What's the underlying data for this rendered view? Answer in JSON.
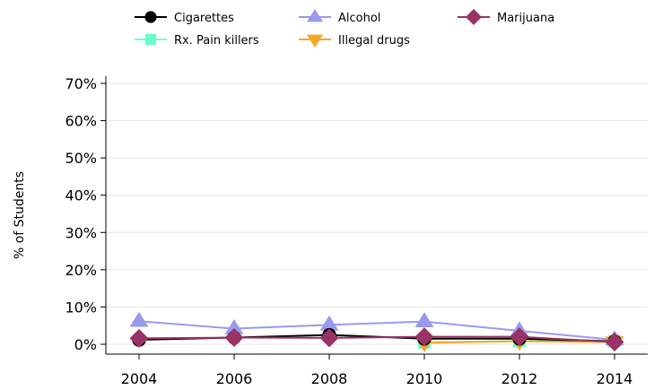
{
  "chart_data": {
    "type": "line",
    "title": "",
    "xlabel": "",
    "ylabel": "% of Students",
    "x": [
      "2004",
      "2006",
      "2008",
      "2010",
      "2012",
      "2014"
    ],
    "xlim": [
      2004,
      2014
    ],
    "ylim": [
      -2,
      75
    ],
    "yticks": [
      0,
      10,
      20,
      30,
      40,
      50,
      60,
      70
    ],
    "ytick_labels": [
      "0%",
      "10%",
      "20%",
      "30%",
      "40%",
      "50%",
      "60%",
      "70%"
    ],
    "grid": "horizontal",
    "legend_placement": "top",
    "series": [
      {
        "name": "Cigarettes",
        "color": "#000000",
        "marker": "circle",
        "values": [
          1.2,
          1.8,
          2.5,
          1.5,
          1.5,
          0.8
        ]
      },
      {
        "name": "Alcohol",
        "color": "#9999ee",
        "marker": "triangle-up",
        "values": [
          6.2,
          4.2,
          5.2,
          6.1,
          3.6,
          1.2
        ]
      },
      {
        "name": "Marijuana",
        "color": "#993366",
        "marker": "diamond",
        "values": [
          1.6,
          1.8,
          1.7,
          2.0,
          2.0,
          0.6
        ]
      },
      {
        "name": "Rx. Pain killers",
        "color": "#66ffcc",
        "marker": "square",
        "values": [
          null,
          null,
          null,
          0.5,
          0.9,
          0.8
        ]
      },
      {
        "name": "Illegal drugs",
        "color": "#f5a623",
        "marker": "triangle-down",
        "values": [
          null,
          null,
          null,
          0.4,
          0.8,
          0.6
        ]
      }
    ]
  }
}
